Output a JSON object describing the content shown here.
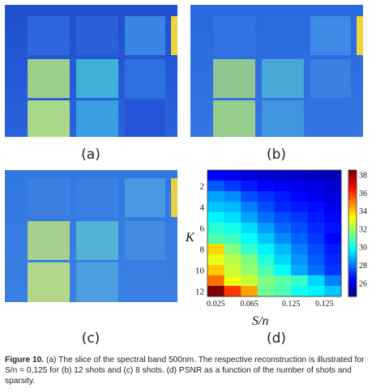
{
  "panels": [
    {
      "id": "a",
      "label": "(a)"
    },
    {
      "id": "b",
      "label": "(b)"
    },
    {
      "id": "c",
      "label": "(c)"
    },
    {
      "id": "d",
      "label": "(d)"
    }
  ],
  "caption": {
    "figure_label": "Figure 10.",
    "text": " (a) The slice of the spectral band 500nm. The respective reconstruction is illustrated for S/n = 0,125 for (b) 12 shots and (c) 8 shots. (d) PSNR as a function of the number of shots and sparsity."
  },
  "chart_data": {
    "type": "heatmap",
    "title": "",
    "xlabel": "S/n",
    "ylabel": "K",
    "x_tick_labels": [
      "0.025",
      "0.065",
      "0.125",
      "0.125"
    ],
    "y_tick_labels": [
      "2",
      "4",
      "6",
      "8",
      "10",
      "12"
    ],
    "colorbar_ticks": [
      "38",
      "36",
      "34",
      "32",
      "30",
      "28",
      "26"
    ],
    "colorbar_range": [
      24.5,
      38.5
    ],
    "colormap": "jet",
    "rows_K": [
      1,
      2,
      3,
      4,
      5,
      6,
      7,
      8,
      9,
      10,
      11,
      12
    ],
    "values": [
      [
        26.2,
        26.0,
        25.8,
        25.6,
        25.5,
        25.5,
        25.4,
        25.3
      ],
      [
        27.5,
        27.0,
        26.6,
        26.3,
        26.1,
        26.0,
        25.9,
        25.6
      ],
      [
        28.5,
        28.2,
        27.3,
        26.9,
        26.6,
        26.3,
        26.0,
        25.8
      ],
      [
        29.0,
        28.8,
        28.0,
        27.3,
        26.8,
        26.6,
        26.4,
        26.0
      ],
      [
        29.6,
        29.3,
        28.5,
        27.8,
        27.3,
        27.0,
        26.6,
        26.3
      ],
      [
        30.3,
        30.0,
        29.3,
        28.4,
        27.7,
        27.3,
        26.8,
        26.5
      ],
      [
        30.8,
        30.6,
        29.8,
        29.0,
        28.2,
        27.6,
        27.0,
        26.3
      ],
      [
        33.8,
        31.5,
        30.5,
        29.6,
        28.8,
        28.0,
        27.3,
        26.6
      ],
      [
        33.0,
        32.2,
        31.5,
        30.2,
        29.2,
        28.3,
        27.5,
        26.8
      ],
      [
        34.0,
        32.5,
        31.8,
        30.8,
        29.8,
        28.6,
        27.8,
        27.0
      ],
      [
        35.2,
        33.0,
        32.5,
        31.5,
        31.0,
        30.5,
        29.2,
        28.0
      ],
      [
        38.5,
        36.0,
        34.5,
        31.2,
        30.8,
        30.0,
        29.6,
        29.0
      ]
    ]
  }
}
